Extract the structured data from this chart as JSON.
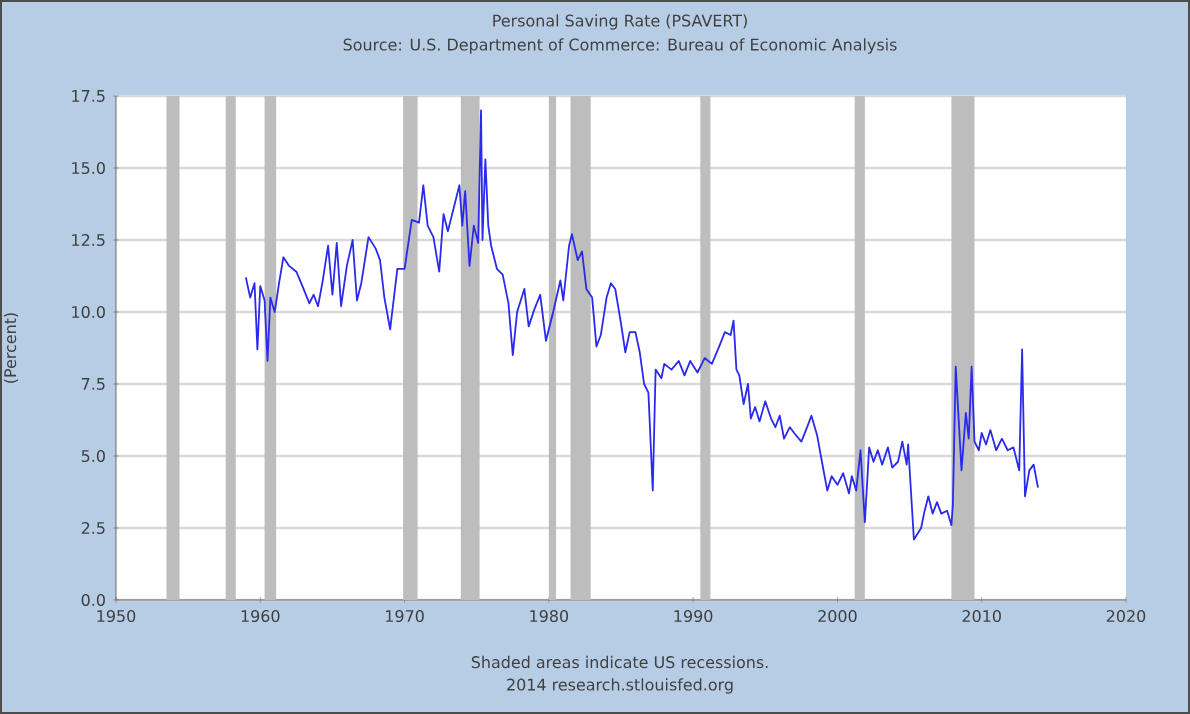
{
  "chart_data": {
    "type": "line",
    "title": "Personal Saving Rate (PSAVERT)",
    "subtitle": "Source: U.S. Department of Commerce: Bureau of Economic Analysis",
    "ylabel": "(Percent)",
    "annotations": [
      "Shaded areas indicate US recessions.",
      "2014 research.stlouisfed.org"
    ],
    "xlim": [
      1950,
      2020
    ],
    "xticks": [
      1950,
      1960,
      1970,
      1980,
      1990,
      2000,
      2010,
      2020
    ],
    "ylim": [
      0,
      17.5
    ],
    "yticks": [
      {
        "value": 0,
        "label": "0.0"
      },
      {
        "value": 2.5,
        "label": "2.5"
      },
      {
        "value": 5,
        "label": "5.0"
      },
      {
        "value": 7.5,
        "label": "7.5"
      },
      {
        "value": 10,
        "label": "10.0"
      },
      {
        "value": 12.5,
        "label": "12.5"
      },
      {
        "value": 15,
        "label": "15.0"
      },
      {
        "value": 17.5,
        "label": "17.5"
      }
    ],
    "grid": "y",
    "marker": "none",
    "line_style": "solid",
    "bands": [
      {
        "axis": "x",
        "from": 1953.5,
        "to": 1954.4,
        "color": "#bdbdbd"
      },
      {
        "axis": "x",
        "from": 1957.6,
        "to": 1958.3,
        "color": "#bdbdbd"
      },
      {
        "axis": "x",
        "from": 1960.3,
        "to": 1961.1,
        "color": "#bdbdbd"
      },
      {
        "axis": "x",
        "from": 1969.9,
        "to": 1970.9,
        "color": "#bdbdbd"
      },
      {
        "axis": "x",
        "from": 1973.9,
        "to": 1975.2,
        "color": "#bdbdbd"
      },
      {
        "axis": "x",
        "from": 1980.0,
        "to": 1980.5,
        "color": "#bdbdbd"
      },
      {
        "axis": "x",
        "from": 1981.5,
        "to": 1982.9,
        "color": "#bdbdbd"
      },
      {
        "axis": "x",
        "from": 1990.5,
        "to": 1991.2,
        "color": "#bdbdbd"
      },
      {
        "axis": "x",
        "from": 2001.2,
        "to": 2001.9,
        "color": "#bdbdbd"
      },
      {
        "axis": "x",
        "from": 2007.9,
        "to": 2009.5,
        "color": "#bdbdbd"
      }
    ],
    "series": [
      {
        "color": "#2a2aee",
        "x": [
          1959.0,
          1959.3,
          1959.6,
          1959.8,
          1960.0,
          1960.3,
          1960.5,
          1960.7,
          1961.0,
          1961.3,
          1961.6,
          1962.0,
          1962.5,
          1963.0,
          1963.4,
          1963.7,
          1964.0,
          1964.3,
          1964.7,
          1965.0,
          1965.3,
          1965.6,
          1966.0,
          1966.4,
          1966.7,
          1967.0,
          1967.5,
          1968.0,
          1968.3,
          1968.6,
          1969.0,
          1969.5,
          1970.0,
          1970.5,
          1971.0,
          1971.3,
          1971.6,
          1972.0,
          1972.4,
          1972.7,
          1973.0,
          1973.5,
          1973.8,
          1974.0,
          1974.2,
          1974.5,
          1974.8,
          1975.1,
          1975.3,
          1975.4,
          1975.6,
          1975.8,
          1976.0,
          1976.4,
          1976.8,
          1977.2,
          1977.5,
          1977.8,
          1978.3,
          1978.6,
          1979.0,
          1979.4,
          1979.8,
          1980.3,
          1980.8,
          1981.0,
          1981.4,
          1981.6,
          1982.0,
          1982.3,
          1982.6,
          1983.0,
          1983.3,
          1983.6,
          1984.0,
          1984.3,
          1984.6,
          1985.0,
          1985.3,
          1985.6,
          1986.0,
          1986.3,
          1986.6,
          1986.9,
          1987.2,
          1987.4,
          1987.8,
          1988.0,
          1988.5,
          1989.0,
          1989.4,
          1989.8,
          1990.3,
          1990.8,
          1991.3,
          1991.8,
          1992.2,
          1992.6,
          1992.8,
          1993.0,
          1993.2,
          1993.5,
          1993.8,
          1994.0,
          1994.3,
          1994.6,
          1995.0,
          1995.4,
          1995.7,
          1996.0,
          1996.3,
          1996.7,
          1997.0,
          1997.5,
          1997.9,
          1998.2,
          1998.6,
          1999.0,
          1999.3,
          1999.6,
          2000.0,
          2000.4,
          2000.8,
          2001.0,
          2001.3,
          2001.6,
          2001.9,
          2002.2,
          2002.5,
          2002.8,
          2003.1,
          2003.5,
          2003.8,
          2004.2,
          2004.5,
          2004.8,
          2004.9,
          2005.3,
          2005.8,
          2006.0,
          2006.3,
          2006.6,
          2006.9,
          2007.2,
          2007.6,
          2007.9,
          2008.0,
          2008.2,
          2008.6,
          2008.9,
          2009.1,
          2009.3,
          2009.5,
          2009.8,
          2010.0,
          2010.3,
          2010.6,
          2011.0,
          2011.4,
          2011.8,
          2012.2,
          2012.6,
          2012.8,
          2013.0,
          2013.3,
          2013.6,
          2013.9
        ],
        "values": [
          11.2,
          10.5,
          11.0,
          8.7,
          10.9,
          10.4,
          8.3,
          10.5,
          10.0,
          11.0,
          11.9,
          11.6,
          11.4,
          10.8,
          10.3,
          10.6,
          10.2,
          11.0,
          12.3,
          10.6,
          12.4,
          10.2,
          11.6,
          12.5,
          10.4,
          11.0,
          12.6,
          12.2,
          11.8,
          10.5,
          9.4,
          11.5,
          11.5,
          13.2,
          13.1,
          14.4,
          13.0,
          12.6,
          11.4,
          13.4,
          12.8,
          13.8,
          14.4,
          13.0,
          14.2,
          11.6,
          13.0,
          12.4,
          17.0,
          12.5,
          15.3,
          13.0,
          12.3,
          11.5,
          11.3,
          10.3,
          8.5,
          10.0,
          10.8,
          9.5,
          10.1,
          10.6,
          9.0,
          10.0,
          11.1,
          10.4,
          12.3,
          12.7,
          11.8,
          12.1,
          10.8,
          10.5,
          8.8,
          9.2,
          10.5,
          11.0,
          10.8,
          9.6,
          8.6,
          9.3,
          9.3,
          8.6,
          7.5,
          7.2,
          3.8,
          8.0,
          7.7,
          8.2,
          8.0,
          8.3,
          7.8,
          8.3,
          7.9,
          8.4,
          8.2,
          8.8,
          9.3,
          9.2,
          9.7,
          8.0,
          7.8,
          6.8,
          7.5,
          6.3,
          6.7,
          6.2,
          6.9,
          6.3,
          6.0,
          6.4,
          5.6,
          6.0,
          5.8,
          5.5,
          6.0,
          6.4,
          5.7,
          4.6,
          3.8,
          4.3,
          4.0,
          4.4,
          3.7,
          4.3,
          3.8,
          5.2,
          2.7,
          5.3,
          4.8,
          5.2,
          4.7,
          5.3,
          4.6,
          4.8,
          5.5,
          4.7,
          5.4,
          2.1,
          2.5,
          3.0,
          3.6,
          3.0,
          3.4,
          3.0,
          3.1,
          2.6,
          3.3,
          8.1,
          4.5,
          6.5,
          5.6,
          8.1,
          5.5,
          5.2,
          5.8,
          5.4,
          5.9,
          5.2,
          5.6,
          5.2,
          5.3,
          4.5,
          8.7,
          3.6,
          4.5,
          4.7,
          3.9
        ]
      }
    ]
  }
}
